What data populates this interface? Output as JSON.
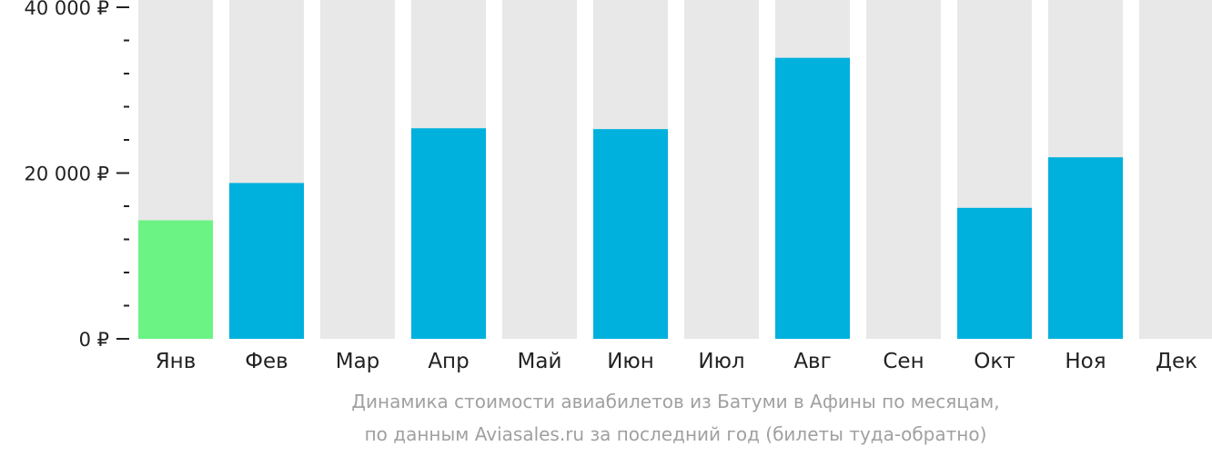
{
  "chart_data": {
    "type": "bar",
    "categories": [
      "Янв",
      "Фев",
      "Мар",
      "Апр",
      "Май",
      "Июн",
      "Июл",
      "Авг",
      "Сен",
      "Окт",
      "Ноя",
      "Дек"
    ],
    "values": [
      14300,
      18800,
      null,
      25400,
      null,
      25300,
      null,
      33900,
      null,
      15800,
      21900,
      null
    ],
    "highlight_index": 0,
    "ylim": [
      0,
      40000
    ],
    "yticks": [
      0,
      20000,
      40000
    ],
    "ytick_labels": [
      "0 ₽",
      "20 000 ₽",
      "40 000 ₽"
    ],
    "minor_ticks_per_major": 5,
    "background_bars": true,
    "grid": false,
    "title": "",
    "xlabel": "",
    "ylabel": ""
  },
  "caption": {
    "line1": "Динамика стоимости авиабилетов из Батуми в Афины по месяцам,",
    "line2": "по данным Aviasales.ru за последний год (билеты туда-обратно)"
  },
  "colors": {
    "bar": "#00b0dd",
    "highlight": "#6bf383",
    "background_bar": "#e8e8e8",
    "axis": "#222222",
    "caption": "#a0a0a0"
  }
}
